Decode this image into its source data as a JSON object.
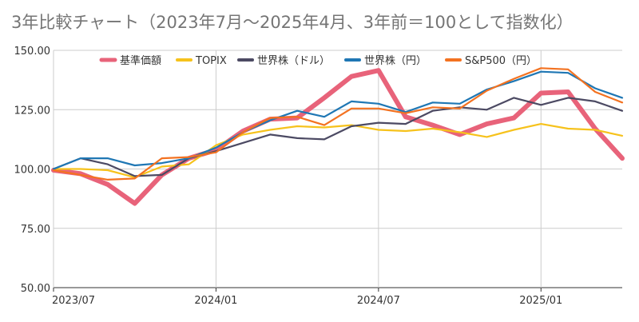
{
  "chart_data": {
    "type": "line",
    "title": "3年比較チャート（2023年7月～2025年4月、3年前＝100として指数化）",
    "x": [
      "2023/07",
      "2023/08",
      "2023/09",
      "2023/10",
      "2023/11",
      "2023/12",
      "2024/01",
      "2024/02",
      "2024/03",
      "2024/04",
      "2024/05",
      "2024/06",
      "2024/07",
      "2024/08",
      "2024/09",
      "2024/10",
      "2024/11",
      "2024/12",
      "2025/01",
      "2025/02",
      "2025/03",
      "2025/04"
    ],
    "x_tick_labels": [
      "2023/07",
      "2024/01",
      "2024/07",
      "2025/01"
    ],
    "x_tick_indices": [
      0,
      6,
      12,
      18
    ],
    "y_ticks": [
      "50.00",
      "75.00",
      "100.00",
      "125.00",
      "150.00"
    ],
    "ylim": [
      50,
      150
    ],
    "grid": true,
    "legend": "top",
    "series": [
      {
        "name": "基準価額",
        "color": "#e8637a",
        "width": 6,
        "values": [
          99.5,
          98.0,
          93.5,
          85.5,
          97.5,
          104.5,
          108.0,
          116.0,
          121.0,
          121.5,
          130.0,
          139.0,
          141.5,
          122.0,
          118.5,
          114.5,
          119.0,
          121.5,
          132.0,
          132.5,
          117.0,
          104.5
        ]
      },
      {
        "name": "TOPIX",
        "color": "#f6c21c",
        "width": 2.2,
        "values": [
          100.0,
          100.0,
          99.5,
          96.5,
          101.0,
          102.0,
          110.0,
          114.5,
          116.5,
          118.0,
          117.5,
          118.5,
          116.5,
          116.0,
          117.0,
          115.5,
          113.5,
          116.5,
          119.0,
          117.0,
          116.5,
          114.0
        ]
      },
      {
        "name": "世界株（ドル）",
        "color": "#4c4a63",
        "width": 2.2,
        "values": [
          100.0,
          104.5,
          102.0,
          97.0,
          97.5,
          104.5,
          107.5,
          111.0,
          114.5,
          113.0,
          112.5,
          118.0,
          119.5,
          119.0,
          124.5,
          126.0,
          125.0,
          130.0,
          127.0,
          130.0,
          128.5,
          124.5
        ]
      },
      {
        "name": "世界株（円）",
        "color": "#1f77b4",
        "width": 2.2,
        "values": [
          100.0,
          104.5,
          104.5,
          101.5,
          102.5,
          104.5,
          109.0,
          115.5,
          120.5,
          124.5,
          122.0,
          128.5,
          127.5,
          124.0,
          128.0,
          127.5,
          133.5,
          137.0,
          141.0,
          140.5,
          134.0,
          130.0
        ]
      },
      {
        "name": "S&P500（円）",
        "color": "#f37221",
        "width": 2.2,
        "values": [
          99.5,
          97.5,
          95.5,
          96.0,
          104.5,
          105.0,
          107.0,
          115.5,
          121.5,
          122.0,
          118.5,
          125.5,
          125.5,
          123.5,
          126.0,
          125.5,
          133.0,
          138.0,
          142.5,
          142.0,
          132.5,
          128.0
        ]
      }
    ]
  }
}
